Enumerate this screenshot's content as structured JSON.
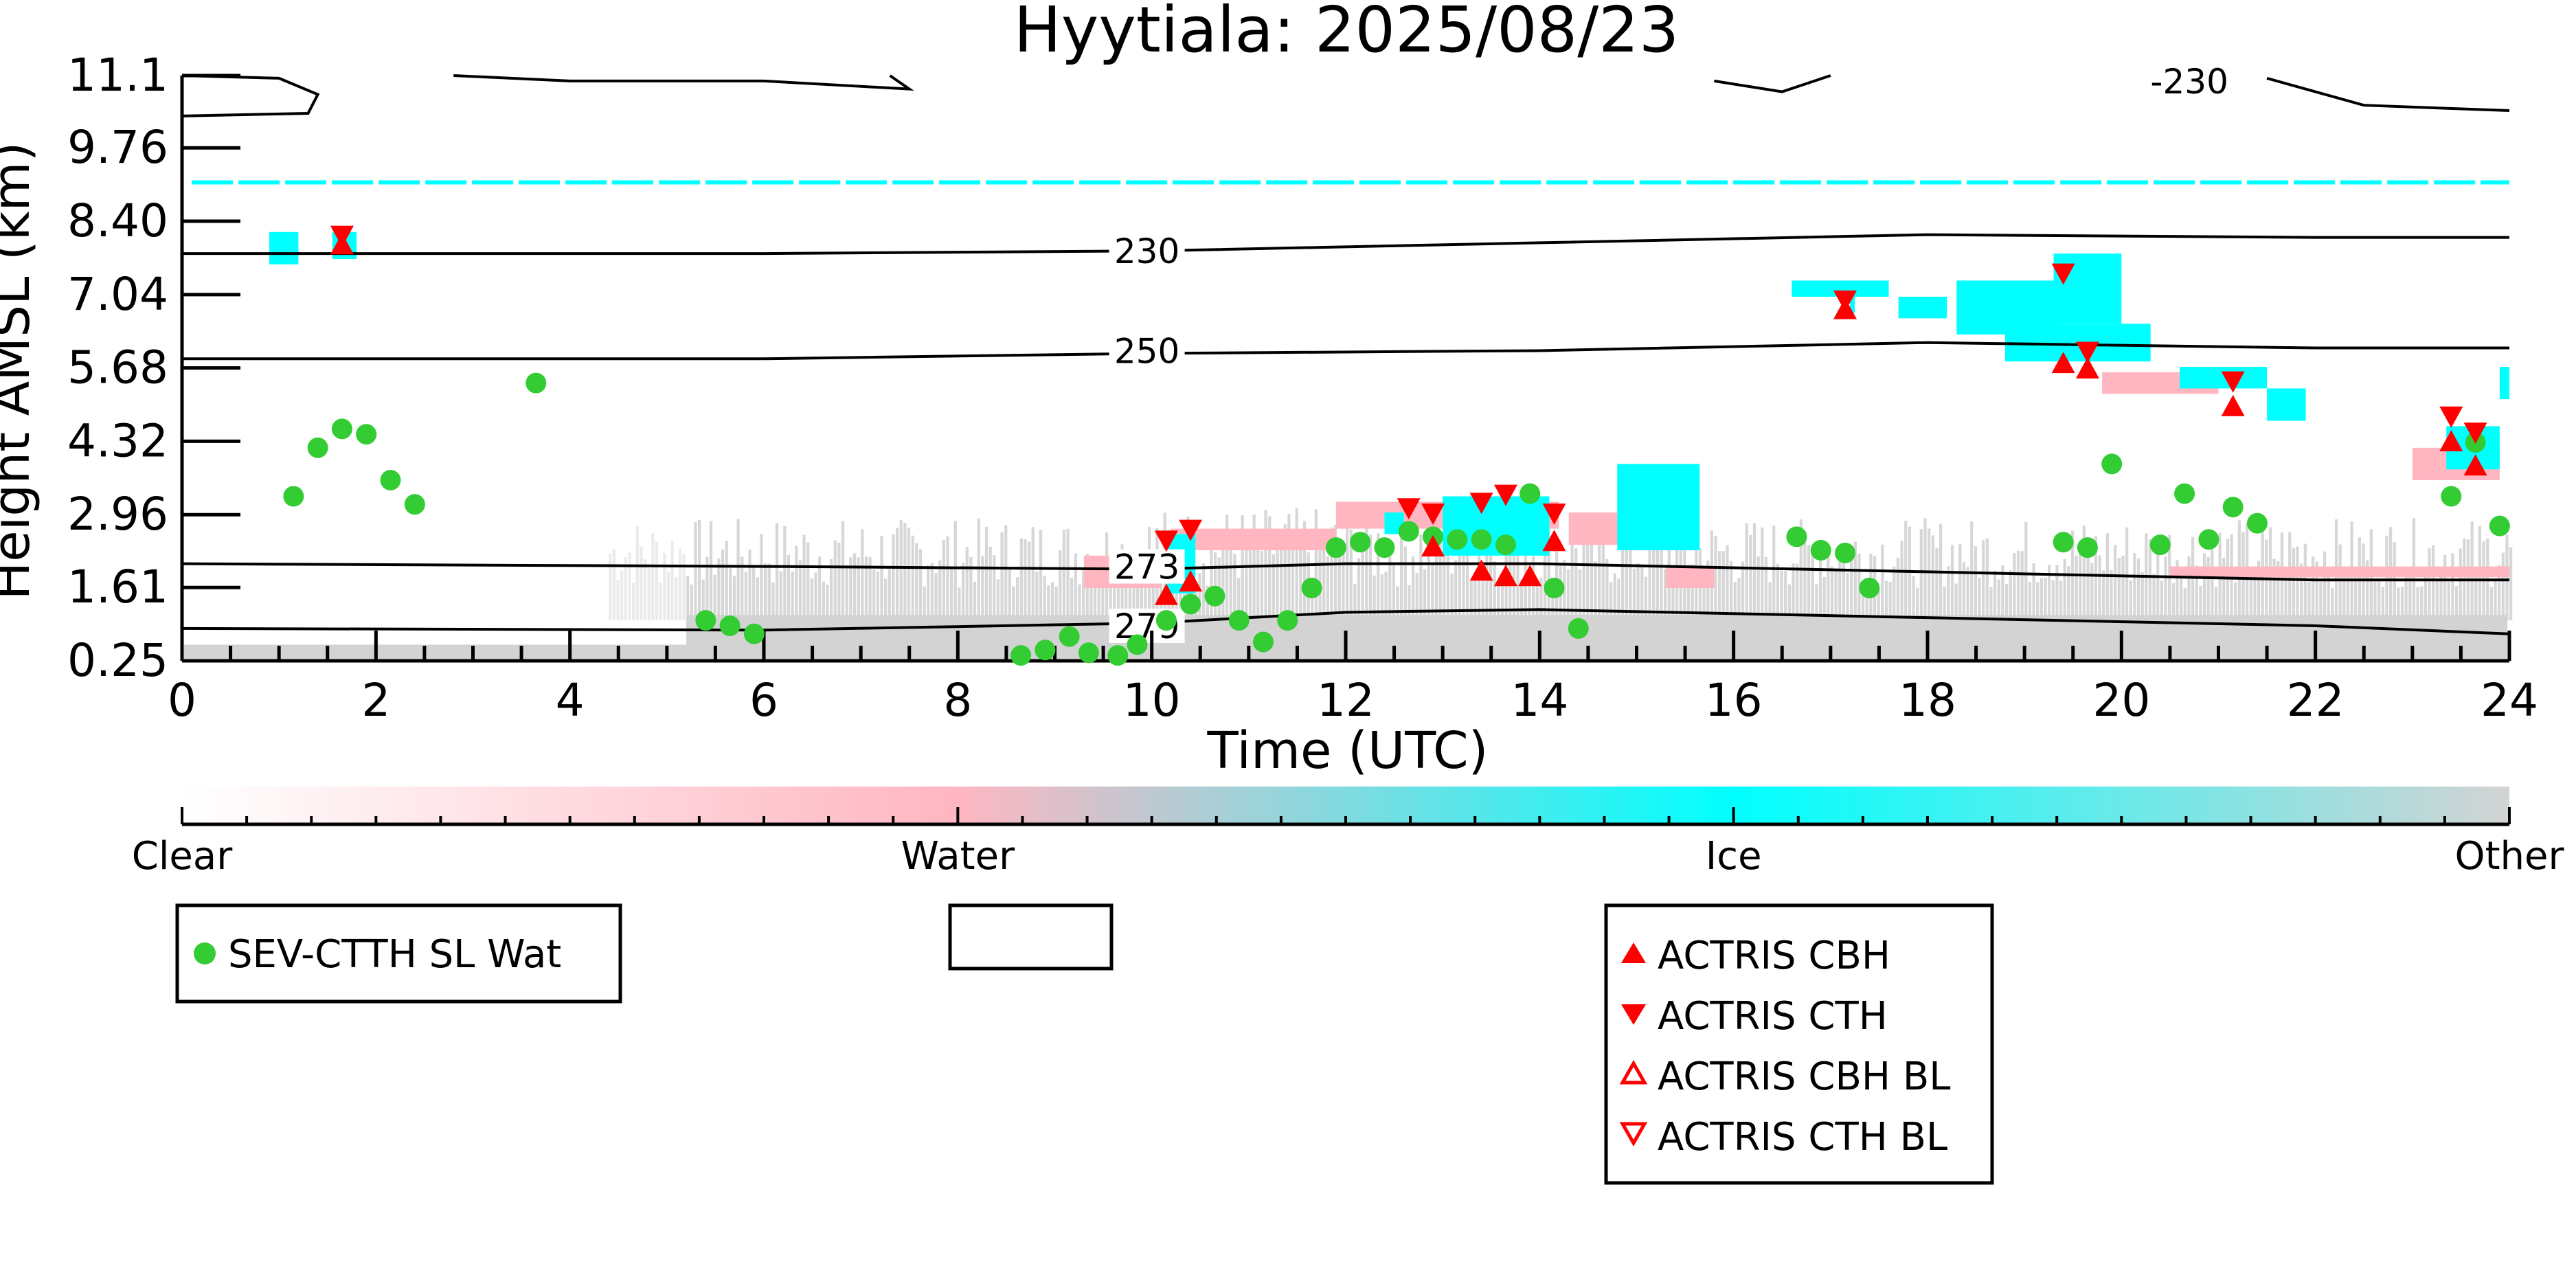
{
  "chart_data": {
    "type": "scatter",
    "title": "Hyytiala: 2025/08/23",
    "xlabel": "Time (UTC)",
    "ylabel": "Height AMSL (km)",
    "xlim": [
      0,
      24
    ],
    "ylim": [
      0.25,
      11.1
    ],
    "x_ticks": [
      "0",
      "2",
      "4",
      "6",
      "8",
      "10",
      "12",
      "14",
      "16",
      "18",
      "20",
      "22",
      "24"
    ],
    "y_ticks": [
      "0.25",
      "1.61",
      "2.96",
      "4.32",
      "5.68",
      "7.04",
      "8.40",
      "9.76",
      "11.1"
    ],
    "colorbar": {
      "labels": [
        "Clear",
        "Water",
        "Ice",
        "Other"
      ],
      "colors": {
        "clear": "#ffffff",
        "water": "#ffb6c1",
        "ice": "#00ffff",
        "other": "#d3d3d3"
      }
    },
    "temperature_contours": [
      {
        "label": "279",
        "height_km": 0.9
      },
      {
        "label": "273",
        "height_km": 2.0
      },
      {
        "label": "250",
        "height_km": 6.0
      },
      {
        "label": "230",
        "height_km": 8.0
      },
      {
        "label": "-230",
        "height_km": 11.0
      }
    ],
    "series": [
      {
        "name": "SEV-CTTH SL Wat",
        "marker": "filled-circle",
        "color": "#33cc33",
        "points": [
          [
            1.15,
            3.3
          ],
          [
            1.4,
            4.2
          ],
          [
            1.65,
            4.55
          ],
          [
            1.9,
            4.45
          ],
          [
            2.15,
            3.6
          ],
          [
            2.4,
            3.15
          ],
          [
            3.65,
            5.4
          ],
          [
            5.4,
            1.0
          ],
          [
            5.65,
            0.9
          ],
          [
            5.9,
            0.75
          ],
          [
            8.65,
            0.35
          ],
          [
            8.9,
            0.45
          ],
          [
            9.15,
            0.7
          ],
          [
            9.35,
            0.4
          ],
          [
            9.65,
            0.35
          ],
          [
            9.85,
            0.55
          ],
          [
            10.15,
            1.0
          ],
          [
            10.4,
            1.3
          ],
          [
            10.65,
            1.45
          ],
          [
            10.9,
            1.0
          ],
          [
            11.15,
            0.6
          ],
          [
            11.4,
            1.0
          ],
          [
            11.65,
            1.6
          ],
          [
            11.9,
            2.35
          ],
          [
            12.15,
            2.45
          ],
          [
            12.4,
            2.35
          ],
          [
            12.65,
            2.65
          ],
          [
            12.9,
            2.55
          ],
          [
            13.15,
            2.5
          ],
          [
            13.4,
            2.5
          ],
          [
            13.65,
            2.4
          ],
          [
            13.9,
            3.35
          ],
          [
            14.15,
            1.6
          ],
          [
            14.4,
            0.85
          ],
          [
            16.65,
            2.55
          ],
          [
            16.9,
            2.3
          ],
          [
            17.15,
            2.25
          ],
          [
            17.4,
            1.6
          ],
          [
            19.4,
            2.45
          ],
          [
            19.65,
            2.35
          ],
          [
            19.9,
            3.9
          ],
          [
            20.4,
            2.4
          ],
          [
            20.65,
            3.35
          ],
          [
            20.9,
            2.5
          ],
          [
            21.15,
            3.1
          ],
          [
            21.4,
            2.8
          ],
          [
            23.4,
            3.3
          ],
          [
            23.65,
            4.3
          ],
          [
            23.9,
            2.75
          ]
        ]
      },
      {
        "name": "ACTRIS CBH",
        "marker": "filled-triangle-up",
        "color": "#ff0000",
        "points": [
          [
            1.65,
            7.95
          ],
          [
            10.15,
            1.45
          ],
          [
            10.4,
            1.7
          ],
          [
            12.9,
            2.35
          ],
          [
            13.4,
            1.9
          ],
          [
            13.65,
            1.8
          ],
          [
            13.9,
            1.8
          ],
          [
            14.15,
            2.45
          ],
          [
            17.15,
            6.75
          ],
          [
            19.4,
            5.75
          ],
          [
            19.65,
            5.65
          ],
          [
            21.15,
            4.95
          ],
          [
            23.4,
            4.3
          ],
          [
            23.65,
            3.85
          ]
        ]
      },
      {
        "name": "ACTRIS CTH",
        "marker": "filled-triangle-down",
        "color": "#ff0000",
        "points": [
          [
            1.65,
            8.15
          ],
          [
            10.15,
            2.5
          ],
          [
            10.4,
            2.7
          ],
          [
            12.65,
            3.1
          ],
          [
            12.9,
            3.0
          ],
          [
            13.4,
            3.2
          ],
          [
            13.65,
            3.35
          ],
          [
            14.15,
            3.0
          ],
          [
            17.15,
            6.95
          ],
          [
            19.4,
            7.45
          ],
          [
            19.65,
            6.0
          ],
          [
            21.15,
            5.45
          ],
          [
            23.4,
            4.8
          ],
          [
            23.65,
            4.5
          ]
        ]
      },
      {
        "name": "ACTRIS CBH BL",
        "marker": "open-triangle-up",
        "color": "#ff0000",
        "points": []
      },
      {
        "name": "ACTRIS CTH BL",
        "marker": "open-triangle-down",
        "color": "#ff0000",
        "points": []
      }
    ],
    "legends": [
      {
        "position": "bottom-left",
        "entries": [
          "SEV-CTTH SL Wat"
        ]
      },
      {
        "position": "bottom-center",
        "entries": []
      },
      {
        "position": "bottom-right",
        "entries": [
          "ACTRIS CBH",
          "ACTRIS CTH",
          "ACTRIS CBH BL",
          "ACTRIS CTH BL"
        ]
      }
    ]
  }
}
